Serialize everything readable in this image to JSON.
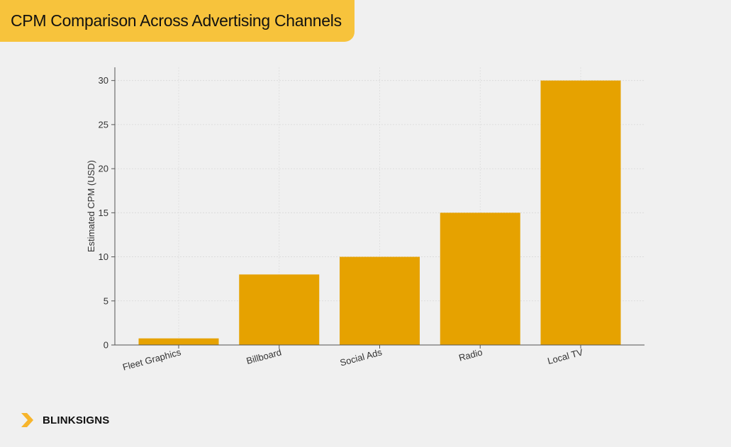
{
  "header": {
    "title": "CPM Comparison Across Advertising Channels"
  },
  "brand": {
    "name": "BLINKSIGNS",
    "logo_icon": "chevron-right-icon",
    "logo_color": "#f7b52c"
  },
  "colors": {
    "banner": "#f7c33c",
    "bar": "#e6a200",
    "background": "#f0f0f0"
  },
  "chart_data": {
    "type": "bar",
    "title": "",
    "xlabel": "",
    "ylabel": "Estimated CPM (USD)",
    "categories": [
      "Fleet Graphics",
      "Billboard",
      "Social Ads",
      "Radio",
      "Local TV"
    ],
    "values": [
      0.75,
      8,
      10,
      15,
      30
    ],
    "ylim": [
      0,
      31.5
    ],
    "yticks": [
      0,
      5,
      10,
      15,
      20,
      25,
      30
    ],
    "ytick_labels": [
      "0",
      "5",
      "10",
      "15",
      "20",
      "25",
      "30"
    ],
    "grid": true,
    "legend": "none"
  }
}
